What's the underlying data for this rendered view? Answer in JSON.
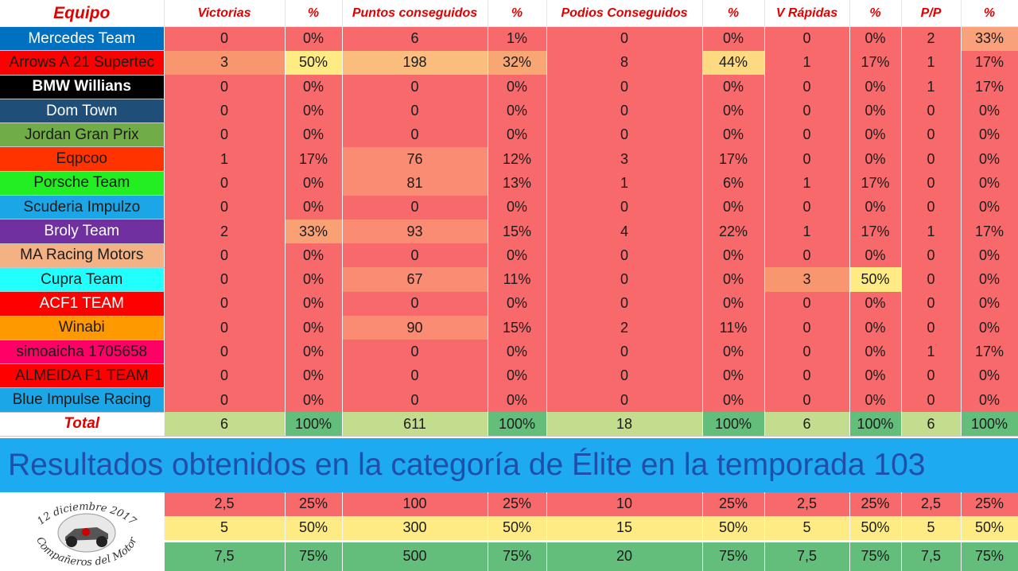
{
  "headers": [
    "Equipo",
    "Victorias",
    "%",
    "Puntos conseguidos",
    "%",
    "Podios Conseguidos",
    "%",
    "V Rápidas",
    "%",
    "P/P",
    "%"
  ],
  "teams": [
    {
      "name": "Mercedes Team",
      "bg": "#0070c0",
      "fg": "#ffffff",
      "bold": false,
      "values": [
        "0",
        "0%",
        "6",
        "1%",
        "0",
        "0%",
        "0",
        "0%",
        "2",
        "33%"
      ],
      "fills": [
        "",
        "",
        "",
        "",
        "",
        "",
        "",
        "",
        "",
        "#f8a17a"
      ]
    },
    {
      "name": "Arrows A 21 Supertec",
      "bg": "#ff0000",
      "fg": "#1b1b1b",
      "bold": false,
      "values": [
        "3",
        "50%",
        "198",
        "32%",
        "8",
        "44%",
        "1",
        "17%",
        "1",
        "17%"
      ],
      "fills": [
        "#f8966f",
        "#ffeb84",
        "#fbbd7e",
        "#f9a675",
        "",
        "#fcda82",
        "",
        "",
        "",
        ""
      ]
    },
    {
      "name": "BMW Willians",
      "bg": "#000000",
      "fg": "#ffffff",
      "bold": true,
      "values": [
        "0",
        "0%",
        "0",
        "0%",
        "0",
        "0%",
        "0",
        "0%",
        "1",
        "17%"
      ],
      "fills": [
        "",
        "",
        "",
        "",
        "",
        "",
        "",
        "",
        "",
        ""
      ]
    },
    {
      "name": "Dom Town",
      "bg": "#1f4e79",
      "fg": "#ffffff",
      "bold": false,
      "values": [
        "0",
        "0%",
        "0",
        "0%",
        "0",
        "0%",
        "0",
        "0%",
        "0",
        "0%"
      ],
      "fills": [
        "",
        "",
        "",
        "",
        "",
        "",
        "",
        "",
        "",
        ""
      ]
    },
    {
      "name": "Jordan Gran Prix",
      "bg": "#70ad47",
      "fg": "#1b1b1b",
      "bold": false,
      "values": [
        "0",
        "0%",
        "0",
        "0%",
        "0",
        "0%",
        "0",
        "0%",
        "0",
        "0%"
      ],
      "fills": [
        "",
        "",
        "",
        "",
        "",
        "",
        "",
        "",
        "",
        ""
      ]
    },
    {
      "name": "Eqpcoo",
      "bg": "#ff3300",
      "fg": "#1b1b1b",
      "bold": false,
      "values": [
        "1",
        "17%",
        "76",
        "12%",
        "3",
        "17%",
        "0",
        "0%",
        "0",
        "0%"
      ],
      "fills": [
        "",
        "",
        "#f98c72",
        "",
        "",
        "",
        "",
        "",
        "",
        ""
      ]
    },
    {
      "name": "Porsche Team",
      "bg": "#22ee22",
      "fg": "#1b1b1b",
      "bold": false,
      "values": [
        "0",
        "0%",
        "81",
        "13%",
        "1",
        "6%",
        "1",
        "17%",
        "0",
        "0%"
      ],
      "fills": [
        "",
        "",
        "#f98c72",
        "",
        "",
        "",
        "",
        "",
        "",
        ""
      ]
    },
    {
      "name": "Scuderia Impulzo",
      "bg": "#1ba6e8",
      "fg": "#1b1b1b",
      "bold": false,
      "values": [
        "0",
        "0%",
        "0",
        "0%",
        "0",
        "0%",
        "0",
        "0%",
        "0",
        "0%"
      ],
      "fills": [
        "",
        "",
        "",
        "",
        "",
        "",
        "",
        "",
        "",
        ""
      ]
    },
    {
      "name": "Broly Team",
      "bg": "#7030a0",
      "fg": "#ffffff",
      "bold": false,
      "values": [
        "2",
        "33%",
        "93",
        "15%",
        "4",
        "22%",
        "1",
        "17%",
        "1",
        "17%"
      ],
      "fills": [
        "",
        "#f9a075",
        "#f98c72",
        "",
        "",
        "",
        "",
        "",
        "",
        ""
      ]
    },
    {
      "name": "MA Racing Motors",
      "bg": "#f4b183",
      "fg": "#1b1b1b",
      "bold": false,
      "values": [
        "0",
        "0%",
        "0",
        "0%",
        "0",
        "0%",
        "0",
        "0%",
        "0",
        "0%"
      ],
      "fills": [
        "",
        "",
        "",
        "",
        "",
        "",
        "",
        "",
        "",
        ""
      ]
    },
    {
      "name": "Cupra Team",
      "bg": "#22ffff",
      "fg": "#1b1b1b",
      "bold": false,
      "values": [
        "0",
        "0%",
        "67",
        "11%",
        "0",
        "0%",
        "3",
        "50%",
        "0",
        "0%"
      ],
      "fills": [
        "",
        "",
        "#f98c72",
        "",
        "",
        "",
        "#f8966f",
        "#ffeb84",
        "",
        ""
      ]
    },
    {
      "name": "ACF1 TEAM",
      "bg": "#ff0000",
      "fg": "#ffffff",
      "bold": false,
      "values": [
        "0",
        "0%",
        "0",
        "0%",
        "0",
        "0%",
        "0",
        "0%",
        "0",
        "0%"
      ],
      "fills": [
        "",
        "",
        "",
        "",
        "",
        "",
        "",
        "",
        "",
        ""
      ]
    },
    {
      "name": "Winabi",
      "bg": "#ff9900",
      "fg": "#1b1b1b",
      "bold": false,
      "values": [
        "0",
        "0%",
        "90",
        "15%",
        "2",
        "11%",
        "0",
        "0%",
        "0",
        "0%"
      ],
      "fills": [
        "",
        "",
        "#f98c72",
        "",
        "",
        "",
        "",
        "",
        "",
        ""
      ]
    },
    {
      "name": "simoaicha 1705658",
      "bg": "#ff0066",
      "fg": "#1b1b1b",
      "bold": false,
      "values": [
        "0",
        "0%",
        "0",
        "0%",
        "0",
        "0%",
        "0",
        "0%",
        "1",
        "17%"
      ],
      "fills": [
        "",
        "",
        "",
        "",
        "",
        "",
        "",
        "",
        "",
        ""
      ]
    },
    {
      "name": "ALMEIDA F1 TEAM",
      "bg": "#ff0000",
      "fg": "#1b1b1b",
      "bold": false,
      "values": [
        "0",
        "0%",
        "0",
        "0%",
        "0",
        "0%",
        "0",
        "0%",
        "0",
        "0%"
      ],
      "fills": [
        "",
        "",
        "",
        "",
        "",
        "",
        "",
        "",
        "",
        ""
      ]
    },
    {
      "name": "Blue Impulse Racing",
      "bg": "#1ba6e8",
      "fg": "#1b1b1b",
      "bold": false,
      "values": [
        "0",
        "0%",
        "0",
        "0%",
        "0",
        "0%",
        "0",
        "0%",
        "0",
        "0%"
      ],
      "fills": [
        "",
        "",
        "",
        "",
        "",
        "",
        "",
        "",
        "",
        ""
      ]
    }
  ],
  "total": {
    "label": "Total",
    "values": [
      "6",
      "100%",
      "611",
      "100%",
      "18",
      "100%",
      "6",
      "100%",
      "6",
      "100%"
    ]
  },
  "banner": "Resultados obtenidos en la categoría de Élite en la temporada 103",
  "legend": [
    {
      "values": [
        "2,5",
        "25%",
        "100",
        "25%",
        "10",
        "25%",
        "2,5",
        "25%",
        "2,5",
        "25%"
      ],
      "color": "#f8696b"
    },
    {
      "values": [
        "5",
        "50%",
        "300",
        "50%",
        "15",
        "50%",
        "5",
        "50%",
        "5",
        "50%"
      ],
      "color": "#ffeb84"
    },
    {
      "values": [
        "7,5",
        "75%",
        "500",
        "75%",
        "20",
        "75%",
        "7,5",
        "75%",
        "7,5",
        "75%"
      ],
      "color": "#63be7b"
    }
  ],
  "logo": {
    "text": "12 diciembre 2017 Compañeros del Motor",
    "icon": "race-car-medallion-icon"
  }
}
